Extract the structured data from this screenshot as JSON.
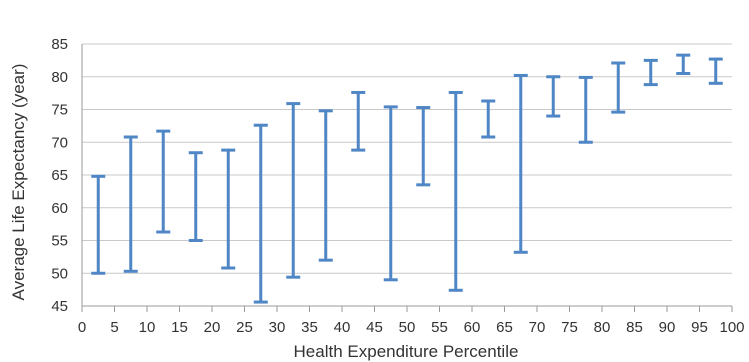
{
  "chart_data": {
    "type": "range-bar",
    "xlabel": "Health Expenditure Percentile",
    "ylabel": "Average Life Expectancy (year)",
    "xlim": [
      0,
      100
    ],
    "ylim": [
      45,
      85
    ],
    "x_ticks": [
      "0",
      "5",
      "10",
      "15",
      "20",
      "25",
      "30",
      "35",
      "40",
      "45",
      "50",
      "55",
      "60",
      "65",
      "70",
      "75",
      "80",
      "85",
      "90",
      "95",
      "100"
    ],
    "y_ticks": [
      "45",
      "50",
      "55",
      "60",
      "65",
      "70",
      "75",
      "80",
      "85"
    ],
    "grid": true,
    "legend": "none",
    "series_color": "#4f86c6",
    "ranges": [
      {
        "x": 2.5,
        "low": 50.0,
        "high": 64.8
      },
      {
        "x": 7.5,
        "low": 50.3,
        "high": 70.8
      },
      {
        "x": 12.5,
        "low": 56.3,
        "high": 71.7
      },
      {
        "x": 17.5,
        "low": 55.0,
        "high": 68.4
      },
      {
        "x": 22.5,
        "low": 50.8,
        "high": 68.8
      },
      {
        "x": 27.5,
        "low": 45.6,
        "high": 72.6
      },
      {
        "x": 32.5,
        "low": 49.4,
        "high": 75.9
      },
      {
        "x": 37.5,
        "low": 52.0,
        "high": 74.8
      },
      {
        "x": 42.5,
        "low": 68.8,
        "high": 77.6
      },
      {
        "x": 47.5,
        "low": 49.0,
        "high": 75.4
      },
      {
        "x": 52.5,
        "low": 63.5,
        "high": 75.3
      },
      {
        "x": 57.5,
        "low": 47.4,
        "high": 77.6
      },
      {
        "x": 62.5,
        "low": 70.8,
        "high": 76.3
      },
      {
        "x": 67.5,
        "low": 53.2,
        "high": 80.2
      },
      {
        "x": 72.5,
        "low": 74.0,
        "high": 80.0
      },
      {
        "x": 77.5,
        "low": 70.0,
        "high": 79.9
      },
      {
        "x": 82.5,
        "low": 74.6,
        "high": 82.1
      },
      {
        "x": 87.5,
        "low": 78.8,
        "high": 82.5
      },
      {
        "x": 92.5,
        "low": 80.5,
        "high": 83.3
      },
      {
        "x": 97.5,
        "low": 79.0,
        "high": 82.7
      }
    ]
  }
}
